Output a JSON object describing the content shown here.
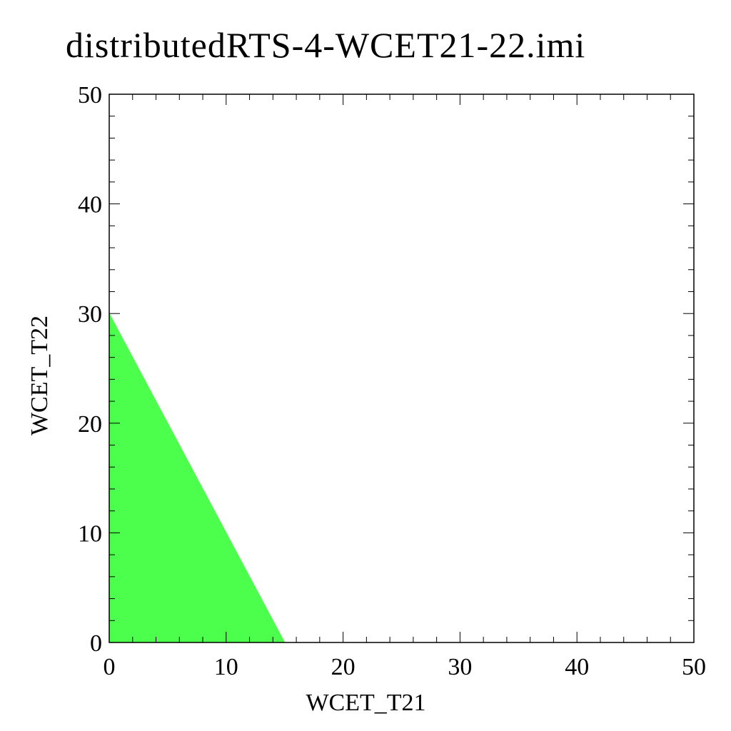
{
  "chart_data": {
    "type": "area",
    "title": "distributedRTS-4-WCET21-22.imi",
    "xlabel": "WCET_T21",
    "ylabel": "WCET_T22",
    "xlim": [
      0,
      50
    ],
    "ylim": [
      0,
      50
    ],
    "x_ticks": [
      "0",
      "10",
      "20",
      "30",
      "40",
      "50"
    ],
    "y_ticks": [
      "0",
      "10",
      "20",
      "30",
      "40",
      "50"
    ],
    "grid": false,
    "region": {
      "color": "#4dff4d",
      "polygon": [
        [
          0,
          0
        ],
        [
          0,
          30
        ],
        [
          15,
          0
        ]
      ]
    }
  }
}
